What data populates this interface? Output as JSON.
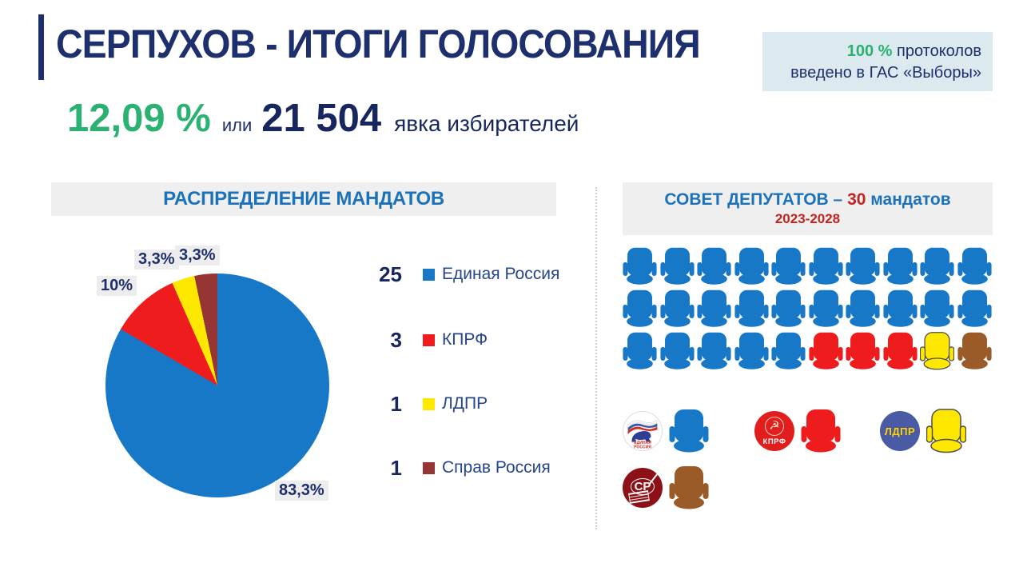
{
  "palette": {
    "navy": "#1e2f6d",
    "dark_navy_numbers": "#17265e",
    "green": "#2bb273",
    "header_blue": "#1c72ba",
    "accent_red": "#c2251f",
    "panel_gray": "#efefef",
    "protocols_bg": "#dce9ee",
    "label_bg": "#ededed"
  },
  "slide": {
    "title": "СЕРПУХОВ - ИТОГИ ГОЛОСОВАНИЯ",
    "protocols": {
      "percent": "100 %",
      "line1_rest": "протоколов",
      "line2": "введено в ГАС «Выборы»"
    },
    "turnout": {
      "percent": "12,09 %",
      "or_word": "или",
      "count": "21 504",
      "label": "явка избирателей"
    }
  },
  "left_panel": {
    "header": "РАСПРЕДЕЛЕНИЕ МАНДАТОВ"
  },
  "right_panel": {
    "header_prefix": "СОВЕТ ДЕПУТАТОВ – ",
    "mandates": "30",
    "header_suffix": " мандатов",
    "term": "2023-2028"
  },
  "parties": [
    {
      "name": "Единая Россия",
      "seats": 25,
      "pct_label": "83,3%",
      "value": 83.3,
      "color": "#1878c8"
    },
    {
      "name": "КПРФ",
      "seats": 3,
      "pct_label": "10%",
      "value": 10,
      "color": "#ee1c1c"
    },
    {
      "name": "ЛДПР",
      "seats": 1,
      "pct_label": "3,3%",
      "value": 3.3,
      "color": "#ffe800",
      "outline": true
    },
    {
      "name": "Справ Россия",
      "seats": 1,
      "pct_label": "3,3%",
      "value": 3.3,
      "color": "#963634",
      "seat_color": "#9a5b28"
    }
  ],
  "logos": {
    "er_line1": "ЕДИНАЯ",
    "er_line2": "РОССИЯ",
    "kprf": "КПРФ",
    "kprf_emblem": "☭",
    "ldpr": "ЛДПР",
    "sr": "СР"
  },
  "chart_data": [
    {
      "type": "pie",
      "title": "РАСПРЕДЕЛЕНИЕ МАНДАТОВ",
      "labels": [
        "Единая Россия",
        "КПРФ",
        "ЛДПР",
        "Справ Россия"
      ],
      "values": [
        83.3,
        10,
        3.3,
        3.3
      ],
      "unit": "%",
      "data_labels": [
        "83,3%",
        "10%",
        "3,3%",
        "3,3%"
      ],
      "mandates": [
        25,
        3,
        1,
        1
      ],
      "colors": [
        "#1878c8",
        "#ee1c1c",
        "#ffe800",
        "#963634"
      ],
      "start_angle_deg": 0,
      "direction": "clockwise",
      "legend_position": "right"
    },
    {
      "type": "seat-map",
      "title": "СОВЕТ ДЕПУТАТОВ – 30 мандатов",
      "term": "2023-2028",
      "total_seats": 30,
      "rows": 3,
      "seats_per_row": 10,
      "fill_order": "row-major, top-left to bottom-right",
      "seats_by_party": [
        {
          "party": "Единая Россия",
          "seats": 25,
          "color": "#1878c8"
        },
        {
          "party": "КПРФ",
          "seats": 3,
          "color": "#ee1c1c"
        },
        {
          "party": "ЛДПР",
          "seats": 1,
          "color": "#ffe800"
        },
        {
          "party": "Справ Россия",
          "seats": 1,
          "color": "#9a5b28"
        }
      ]
    }
  ]
}
